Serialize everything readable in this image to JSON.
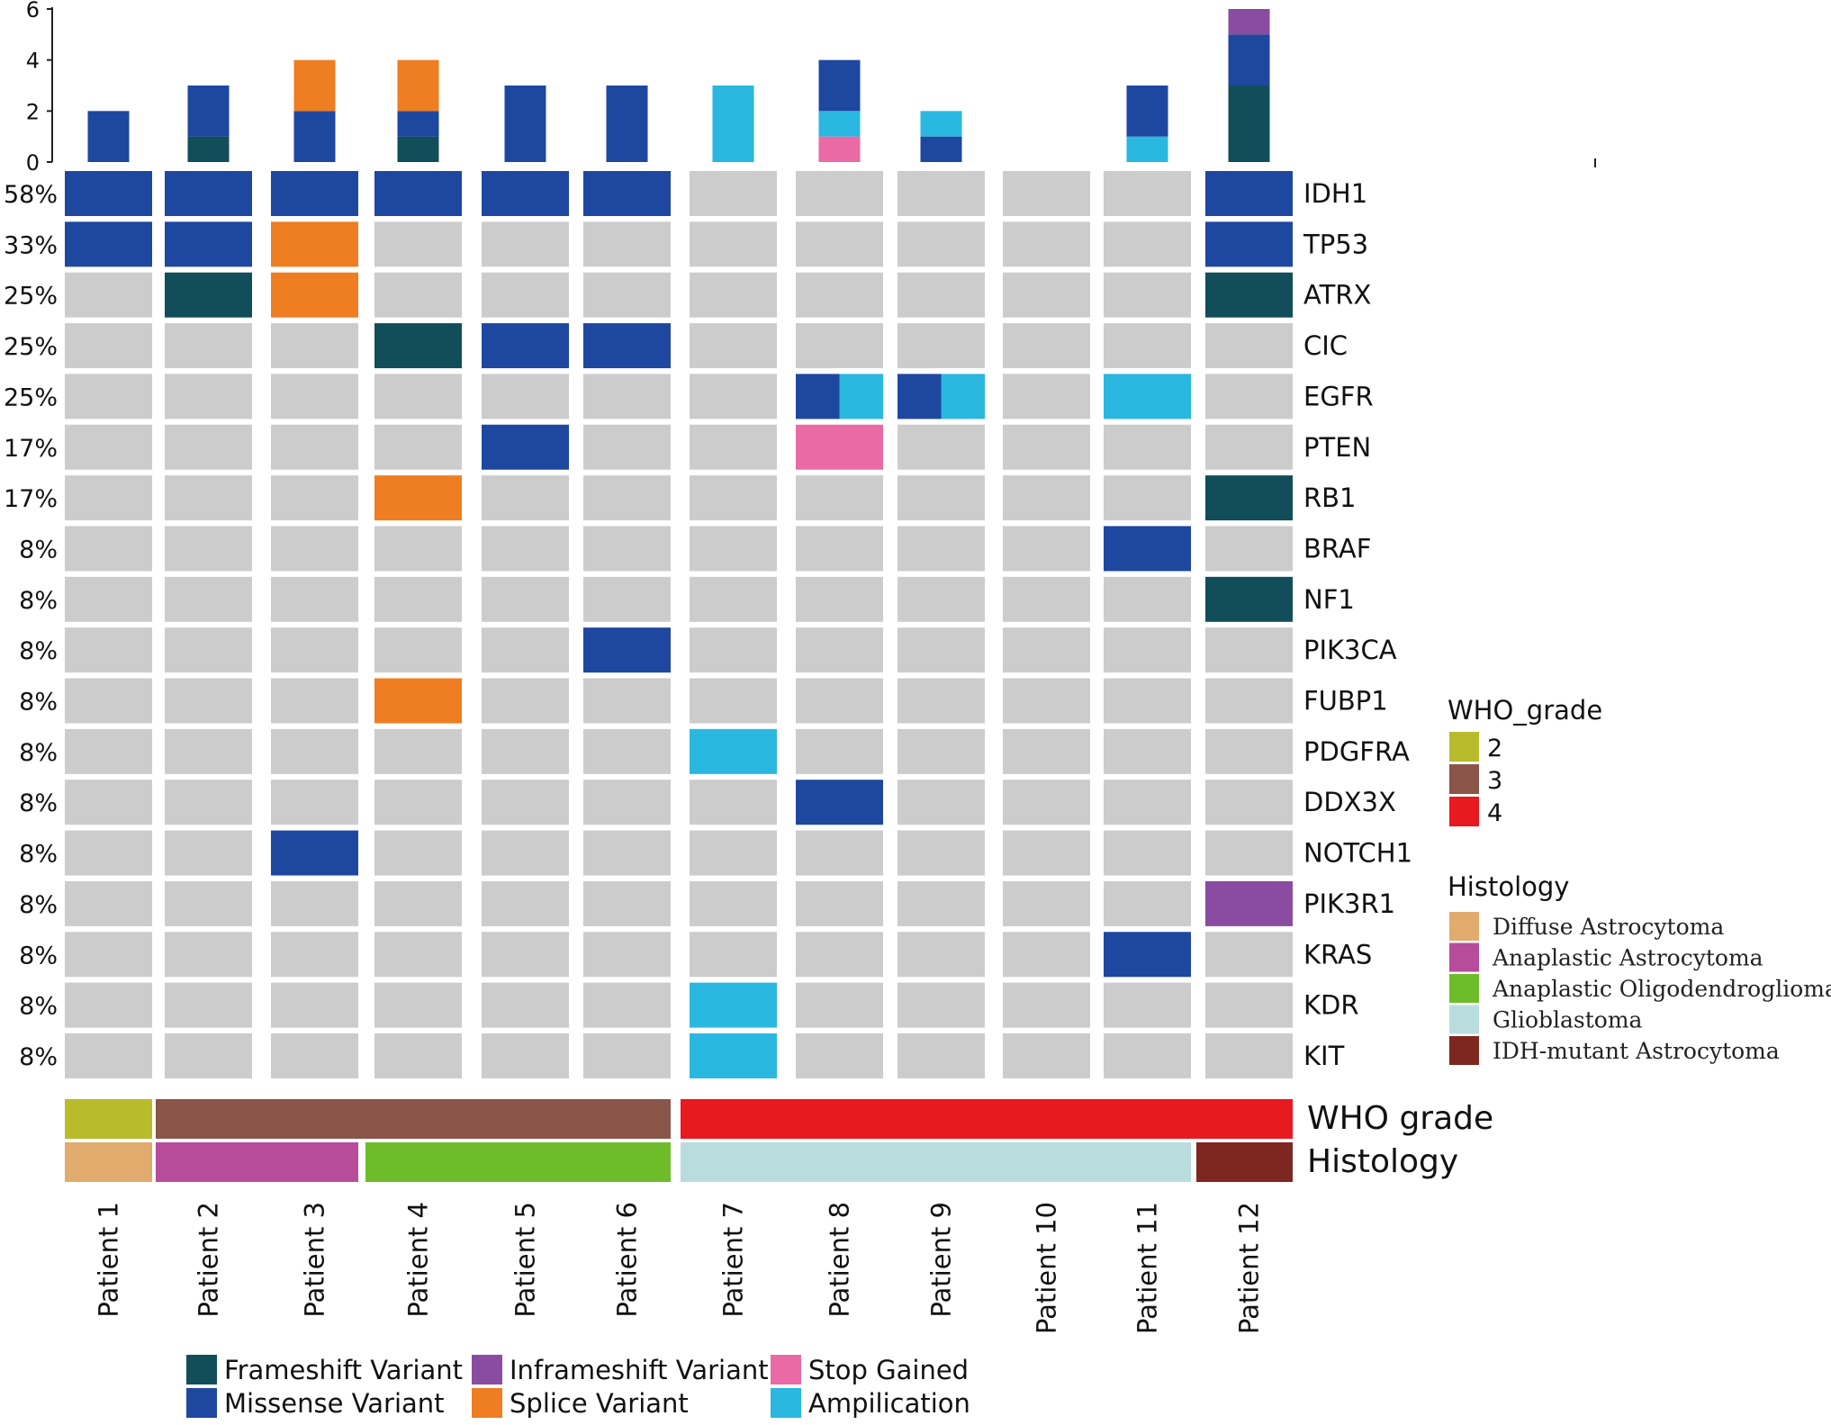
{
  "chart_data": {
    "type": "heatmap",
    "title": "",
    "patients": [
      "Patient 1",
      "Patient 2",
      "Patient 3",
      "Patient 4",
      "Patient 5",
      "Patient 6",
      "Patient 7",
      "Patient 8",
      "Patient 9",
      "Patient 10",
      "Patient 11",
      "Patient 12"
    ],
    "genes": [
      "IDH1",
      "TP53",
      "ATRX",
      "CIC",
      "EGFR",
      "PTEN",
      "RB1",
      "BRAF",
      "NF1",
      "PIK3CA",
      "FUBP1",
      "PDGFRA",
      "DDX3X",
      "NOTCH1",
      "PIK3R1",
      "KRAS",
      "KDR",
      "KIT"
    ],
    "gene_percent": [
      "58%",
      "33%",
      "25%",
      "25%",
      "25%",
      "17%",
      "17%",
      "8%",
      "8%",
      "8%",
      "8%",
      "8%",
      "8%",
      "8%",
      "8%",
      "8%",
      "8%",
      "8%"
    ],
    "variant_types": [
      {
        "key": "frameshift",
        "label": "Frameshift Variant",
        "color": "#114e5a"
      },
      {
        "key": "missense",
        "label": "Missense Variant",
        "color": "#1e47a0"
      },
      {
        "key": "inframeshift",
        "label": "Inframeshift Variant",
        "color": "#8a4ca0"
      },
      {
        "key": "splice",
        "label": "Splice Variant",
        "color": "#ef7d22"
      },
      {
        "key": "stop",
        "label": "Stop Gained",
        "color": "#e96aa5"
      },
      {
        "key": "amp",
        "label": "Ampilication",
        "color": "#2ab7e0"
      }
    ],
    "empty_color": "#cccccc",
    "mutations": [
      {
        "gene": "IDH1",
        "patient": "Patient 1",
        "types": [
          "missense"
        ]
      },
      {
        "gene": "IDH1",
        "patient": "Patient 2",
        "types": [
          "missense"
        ]
      },
      {
        "gene": "IDH1",
        "patient": "Patient 3",
        "types": [
          "missense"
        ]
      },
      {
        "gene": "IDH1",
        "patient": "Patient 4",
        "types": [
          "missense"
        ]
      },
      {
        "gene": "IDH1",
        "patient": "Patient 5",
        "types": [
          "missense"
        ]
      },
      {
        "gene": "IDH1",
        "patient": "Patient 6",
        "types": [
          "missense"
        ]
      },
      {
        "gene": "IDH1",
        "patient": "Patient 12",
        "types": [
          "missense"
        ]
      },
      {
        "gene": "TP53",
        "patient": "Patient 1",
        "types": [
          "missense"
        ]
      },
      {
        "gene": "TP53",
        "patient": "Patient 2",
        "types": [
          "missense"
        ]
      },
      {
        "gene": "TP53",
        "patient": "Patient 3",
        "types": [
          "splice"
        ]
      },
      {
        "gene": "TP53",
        "patient": "Patient 12",
        "types": [
          "missense"
        ]
      },
      {
        "gene": "ATRX",
        "patient": "Patient 2",
        "types": [
          "frameshift"
        ]
      },
      {
        "gene": "ATRX",
        "patient": "Patient 3",
        "types": [
          "splice"
        ]
      },
      {
        "gene": "ATRX",
        "patient": "Patient 12",
        "types": [
          "frameshift"
        ]
      },
      {
        "gene": "CIC",
        "patient": "Patient 4",
        "types": [
          "frameshift"
        ]
      },
      {
        "gene": "CIC",
        "patient": "Patient 5",
        "types": [
          "missense"
        ]
      },
      {
        "gene": "CIC",
        "patient": "Patient 6",
        "types": [
          "missense"
        ]
      },
      {
        "gene": "EGFR",
        "patient": "Patient 8",
        "types": [
          "missense",
          "amp"
        ]
      },
      {
        "gene": "EGFR",
        "patient": "Patient 9",
        "types": [
          "missense",
          "amp"
        ]
      },
      {
        "gene": "EGFR",
        "patient": "Patient 11",
        "types": [
          "amp"
        ]
      },
      {
        "gene": "PTEN",
        "patient": "Patient 5",
        "types": [
          "missense"
        ]
      },
      {
        "gene": "PTEN",
        "patient": "Patient 8",
        "types": [
          "stop"
        ]
      },
      {
        "gene": "RB1",
        "patient": "Patient 4",
        "types": [
          "splice"
        ]
      },
      {
        "gene": "RB1",
        "patient": "Patient 12",
        "types": [
          "frameshift"
        ]
      },
      {
        "gene": "BRAF",
        "patient": "Patient 11",
        "types": [
          "missense"
        ]
      },
      {
        "gene": "NF1",
        "patient": "Patient 12",
        "types": [
          "frameshift"
        ]
      },
      {
        "gene": "PIK3CA",
        "patient": "Patient 6",
        "types": [
          "missense"
        ]
      },
      {
        "gene": "FUBP1",
        "patient": "Patient 4",
        "types": [
          "splice"
        ]
      },
      {
        "gene": "PDGFRA",
        "patient": "Patient 7",
        "types": [
          "amp"
        ]
      },
      {
        "gene": "DDX3X",
        "patient": "Patient 8",
        "types": [
          "missense"
        ]
      },
      {
        "gene": "NOTCH1",
        "patient": "Patient 3",
        "types": [
          "missense"
        ]
      },
      {
        "gene": "PIK3R1",
        "patient": "Patient 12",
        "types": [
          "inframeshift"
        ]
      },
      {
        "gene": "KRAS",
        "patient": "Patient 11",
        "types": [
          "missense"
        ]
      },
      {
        "gene": "KDR",
        "patient": "Patient 7",
        "types": [
          "amp"
        ]
      },
      {
        "gene": "KIT",
        "patient": "Patient 7",
        "types": [
          "amp"
        ]
      }
    ],
    "top_bar": {
      "yticks": [
        "0",
        "2",
        "4",
        "6"
      ],
      "ylim": [
        0,
        6
      ],
      "stacks": [
        [
          {
            "type": "missense",
            "value": 2
          }
        ],
        [
          {
            "type": "frameshift",
            "value": 1
          },
          {
            "type": "missense",
            "value": 2
          }
        ],
        [
          {
            "type": "missense",
            "value": 2
          },
          {
            "type": "splice",
            "value": 2
          }
        ],
        [
          {
            "type": "frameshift",
            "value": 1
          },
          {
            "type": "missense",
            "value": 1
          },
          {
            "type": "splice",
            "value": 2
          }
        ],
        [
          {
            "type": "missense",
            "value": 3
          }
        ],
        [
          {
            "type": "missense",
            "value": 3
          }
        ],
        [
          {
            "type": "amp",
            "value": 3
          }
        ],
        [
          {
            "type": "stop",
            "value": 1
          },
          {
            "type": "amp",
            "value": 1
          },
          {
            "type": "missense",
            "value": 2
          }
        ],
        [
          {
            "type": "missense",
            "value": 1
          },
          {
            "type": "amp",
            "value": 1
          }
        ],
        [],
        [
          {
            "type": "amp",
            "value": 1
          },
          {
            "type": "missense",
            "value": 2
          }
        ],
        [
          {
            "type": "frameshift",
            "value": 3
          },
          {
            "type": "missense",
            "value": 2
          },
          {
            "type": "inframeshift",
            "value": 1
          }
        ]
      ]
    },
    "annotation_rows": [
      {
        "label": "WHO grade",
        "values": [
          "2",
          "3",
          "3",
          "3",
          "3",
          "3",
          "4",
          "4",
          "4",
          "4",
          "4",
          "4"
        ]
      },
      {
        "label": "Histology",
        "values": [
          "Diffuse Astrocytoma",
          "Anaplastic Astrocytoma",
          "Anaplastic Astrocytoma",
          "Anaplastic Oligodendroglioma",
          "Anaplastic Oligodendroglioma",
          "Anaplastic Oligodendroglioma",
          "Glioblastoma",
          "Glioblastoma",
          "Glioblastoma",
          "Glioblastoma",
          "Glioblastoma",
          "IDH-mutant Astrocytoma"
        ]
      }
    ],
    "legend_grade": {
      "title": "WHO_grade",
      "items": [
        {
          "label": "2",
          "color": "#b8bb2c"
        },
        {
          "label": "3",
          "color": "#8a5549"
        },
        {
          "label": "4",
          "color": "#e8191f"
        }
      ]
    },
    "legend_histology": {
      "title": "Histology",
      "items": [
        {
          "label": "Diffuse Astrocytoma",
          "color": "#e1ab6d"
        },
        {
          "label": "Anaplastic Astrocytoma",
          "color": "#b64c9a"
        },
        {
          "label": "Anaplastic Oligodendroglioma",
          "color": "#6fbc2a"
        },
        {
          "label": "Glioblastoma",
          "color": "#b9dddc"
        },
        {
          "label": "IDH-mutant Astrocytoma",
          "color": "#7e2620"
        }
      ]
    }
  }
}
